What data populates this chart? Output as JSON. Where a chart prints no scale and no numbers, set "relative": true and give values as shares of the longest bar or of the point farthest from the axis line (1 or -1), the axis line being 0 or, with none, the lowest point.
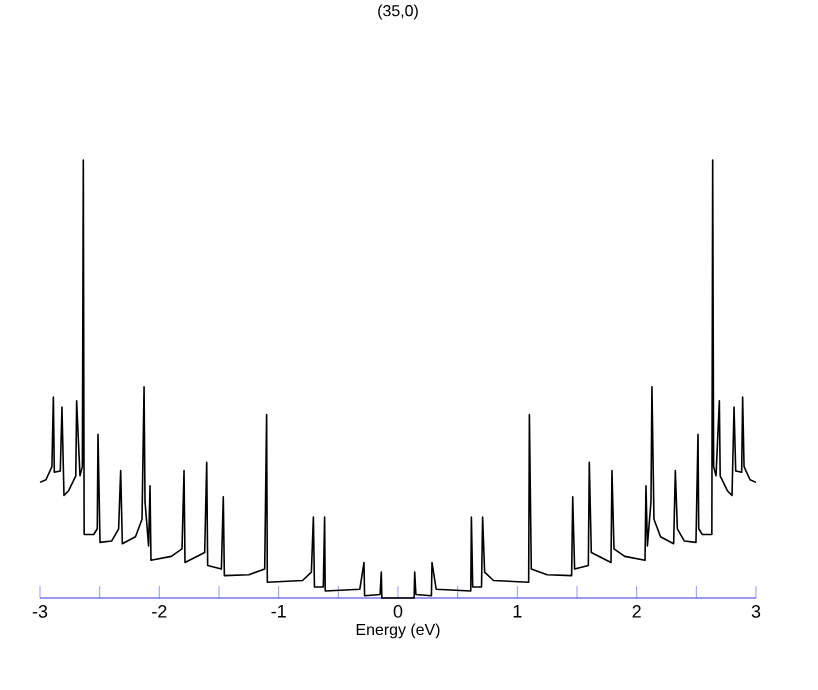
{
  "chart_data": {
    "type": "line",
    "title": "(35,0)",
    "xlabel": "Energy (eV)",
    "relative": true,
    "xlim": [
      -3,
      3
    ],
    "xticks": [
      -3,
      {
        "value": -2.5,
        "label": null
      },
      -2,
      {
        "value": -1.5,
        "label": null
      },
      -1,
      {
        "value": -0.5,
        "label": null
      },
      0,
      {
        "value": 0.5,
        "label": null
      },
      1,
      {
        "value": 1.5,
        "label": null
      },
      2,
      {
        "value": 2.5,
        "label": null
      },
      3
    ],
    "tick_labels": "x",
    "series": [
      {
        "color": "#000000",
        "x": [
          -3.0,
          -2.95,
          -2.9,
          -2.888,
          -2.88,
          -2.83,
          -2.816,
          -2.799,
          -2.76,
          -2.7,
          -2.693,
          -2.665,
          -2.645,
          -2.637,
          -2.63,
          -2.55,
          -2.52,
          -2.514,
          -2.497,
          -2.4,
          -2.341,
          -2.324,
          -2.31,
          -2.2,
          -2.145,
          -2.128,
          -2.12,
          -2.09,
          -2.078,
          -2.07,
          -1.9,
          -1.81,
          -1.793,
          -1.785,
          -1.62,
          -1.603,
          -1.595,
          -1.48,
          -1.464,
          -1.455,
          -1.25,
          -1.117,
          -1.101,
          -1.095,
          -0.8,
          -0.726,
          -0.709,
          -0.7,
          -0.626,
          -0.615,
          -0.61,
          -0.32,
          -0.285,
          -0.28,
          -0.15,
          -0.14,
          -0.135,
          0,
          0.135,
          0.14,
          0.15,
          0.28,
          0.285,
          0.32,
          0.61,
          0.615,
          0.626,
          0.7,
          0.709,
          0.726,
          0.8,
          1.095,
          1.101,
          1.117,
          1.25,
          1.455,
          1.464,
          1.48,
          1.595,
          1.603,
          1.62,
          1.785,
          1.793,
          1.81,
          1.9,
          2.07,
          2.078,
          2.09,
          2.12,
          2.128,
          2.145,
          2.2,
          2.31,
          2.324,
          2.341,
          2.4,
          2.497,
          2.514,
          2.52,
          2.55,
          2.63,
          2.637,
          2.645,
          2.665,
          2.693,
          2.7,
          2.76,
          2.799,
          2.816,
          2.83,
          2.88,
          2.888,
          2.9,
          2.95,
          3.0
        ],
        "values": [
          0.264,
          0.27,
          0.3,
          0.459,
          0.287,
          0.29,
          0.436,
          0.234,
          0.245,
          0.279,
          0.45,
          0.279,
          0.3,
          1,
          0.145,
          0.145,
          0.158,
          0.374,
          0.127,
          0.13,
          0.158,
          0.291,
          0.124,
          0.14,
          0.18,
          0.482,
          0.22,
          0.119,
          0.256,
          0.086,
          0.095,
          0.112,
          0.291,
          0.081,
          0.104,
          0.31,
          0.074,
          0.066,
          0.231,
          0.051,
          0.053,
          0.066,
          0.419,
          0.036,
          0.04,
          0.059,
          0.185,
          0.025,
          0.025,
          0.185,
          0.016,
          0.02,
          0.081,
          0.005,
          0.008,
          0.059,
          0,
          0,
          0,
          0.059,
          0.008,
          0.005,
          0.081,
          0.02,
          0.016,
          0.185,
          0.025,
          0.025,
          0.185,
          0.059,
          0.04,
          0.036,
          0.419,
          0.066,
          0.053,
          0.051,
          0.231,
          0.066,
          0.074,
          0.31,
          0.104,
          0.081,
          0.291,
          0.112,
          0.095,
          0.086,
          0.256,
          0.119,
          0.22,
          0.482,
          0.18,
          0.14,
          0.124,
          0.291,
          0.158,
          0.13,
          0.127,
          0.374,
          0.158,
          0.145,
          0.145,
          1,
          0.3,
          0.279,
          0.45,
          0.279,
          0.245,
          0.234,
          0.436,
          0.29,
          0.287,
          0.459,
          0.3,
          0.27,
          0.264
        ]
      }
    ]
  }
}
